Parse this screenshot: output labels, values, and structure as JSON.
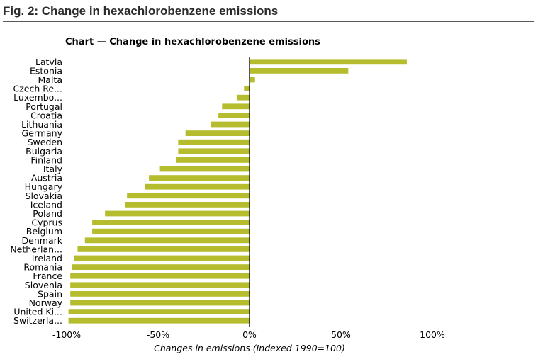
{
  "figure": {
    "title": "Fig. 2: Change in hexachlorobenzene emissions"
  },
  "colors": {
    "bar": "#b5bd2e",
    "axis": "#000000"
  },
  "chart_data": {
    "type": "bar",
    "orientation": "horizontal",
    "title": "Chart — Change in hexachlorobenzene emissions",
    "xlabel": "Changes in emissions (Indexed 1990=100)",
    "ylabel": "",
    "xlim": [
      -100,
      100
    ],
    "x_ticks": [
      "-100%",
      "-50%",
      "0%",
      "50%",
      "100%"
    ],
    "x_tick_values": [
      -100,
      -50,
      0,
      50,
      100
    ],
    "grid": false,
    "categories": [
      "Latvia",
      "Estonia",
      "Malta",
      "Czech Re...",
      "Luxembo...",
      "Portugal",
      "Croatia",
      "Lithuania",
      "Germany",
      "Sweden",
      "Bulgaria",
      "Finland",
      "Italy",
      "Austria",
      "Hungary",
      "Slovakia",
      "Iceland",
      "Poland",
      "Cyprus",
      "Belgium",
      "Denmark",
      "Netherlan...",
      "Ireland",
      "Romania",
      "France",
      "Slovenia",
      "Spain",
      "Norway",
      "United Ki...",
      "Switzerla..."
    ],
    "values": [
      86,
      54,
      3,
      -3,
      -7,
      -15,
      -17,
      -21,
      -35,
      -39,
      -39,
      -40,
      -49,
      -55,
      -57,
      -67,
      -68,
      -79,
      -86,
      -86,
      -90,
      -94,
      -96,
      -97,
      -98,
      -98,
      -98,
      -98,
      -99,
      -99
    ]
  }
}
